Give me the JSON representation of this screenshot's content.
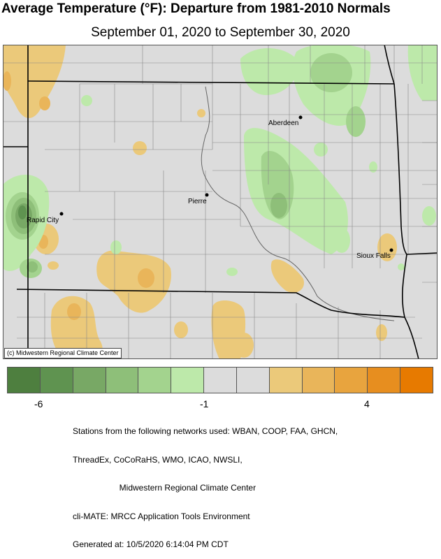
{
  "title": "Average Temperature (°F): Departure from 1981-2010 Normals",
  "subtitle": "September 01, 2020 to September 30, 2020",
  "map": {
    "credit": "(c) Midwestern Regional Climate Center",
    "cities": [
      {
        "name": "Aberdeen"
      },
      {
        "name": "Pierre"
      },
      {
        "name": "Rapid City"
      },
      {
        "name": "Sioux Falls"
      }
    ]
  },
  "legend": {
    "colors": [
      "#4e7f3f",
      "#5f9350",
      "#78a865",
      "#8ebf79",
      "#a3d38e",
      "#bde9aa",
      "#dcdcdc",
      "#dcdcdc",
      "#ebc97a",
      "#e9b55a",
      "#e8a43e",
      "#e78e1f",
      "#e77a00"
    ],
    "ticks": [
      {
        "label": "-6",
        "value": -6
      },
      {
        "label": "-1",
        "value": -1
      },
      {
        "label": "4",
        "value": 4
      }
    ]
  },
  "footer": {
    "lines": [
      "Stations from the following networks used: WBAN, COOP, FAA, GHCN,",
      "ThreadEx, CoCoRaHS, WMO, ICAO, NWSLI,",
      "                    Midwestern Regional Climate Center",
      "cli-MATE: MRCC Application Tools Environment",
      "Generated at: 10/5/2020 6:14:04 PM CDT"
    ]
  }
}
